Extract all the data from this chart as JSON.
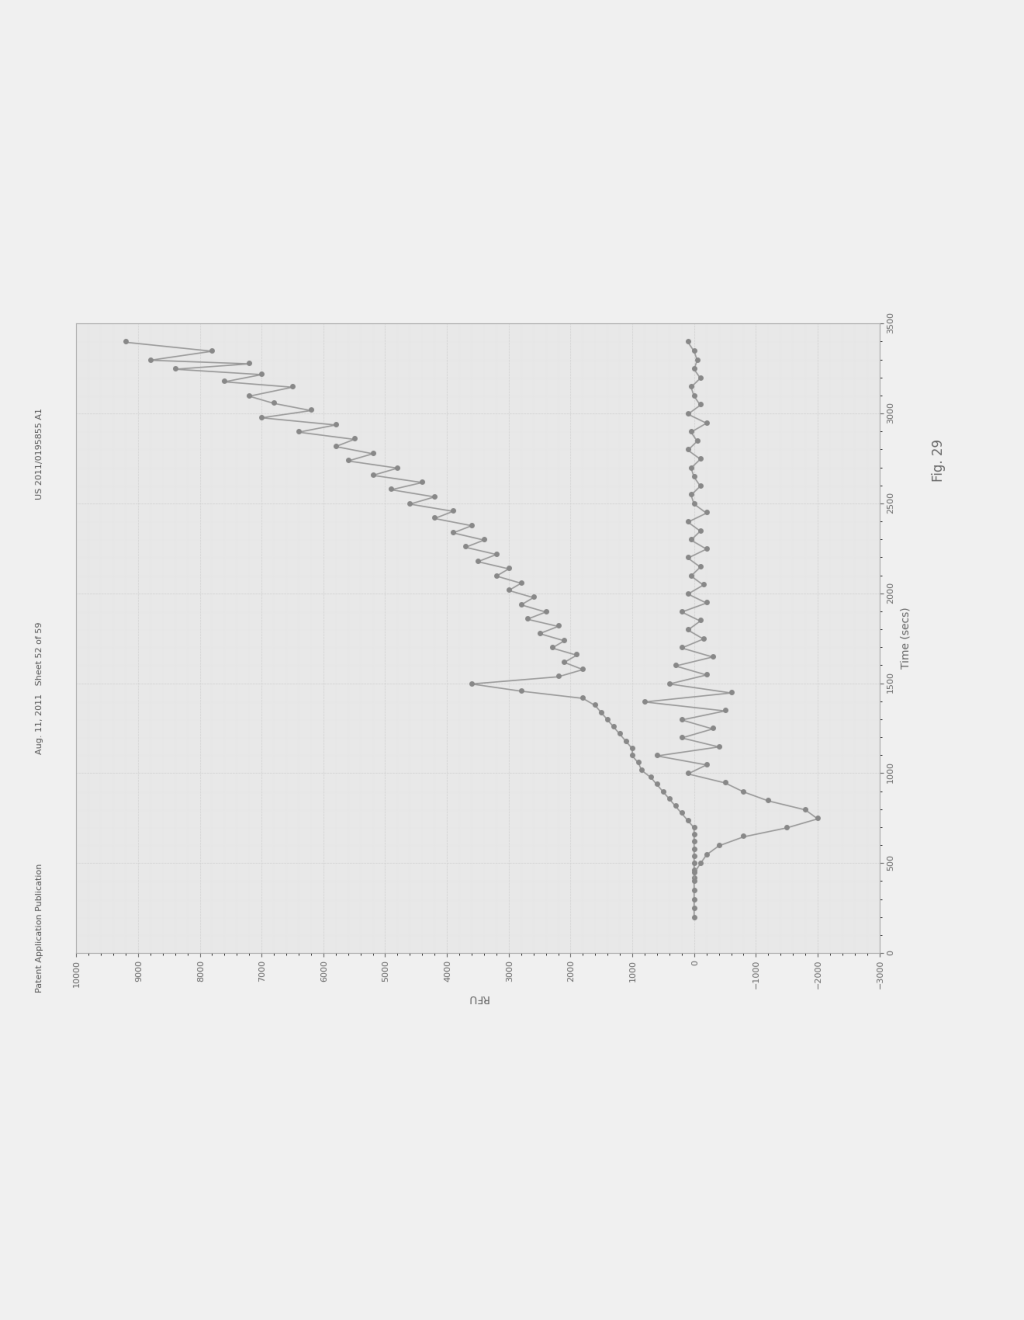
{
  "title": "",
  "xlabel": "Time (secs)",
  "ylabel": "RFU",
  "xlim": [
    0,
    3500
  ],
  "ylim": [
    -3000,
    10000
  ],
  "xticks": [
    0,
    500,
    1000,
    1500,
    2000,
    2500,
    3000,
    3500
  ],
  "yticks": [
    -3000,
    -2000,
    -1000,
    0,
    1000,
    2000,
    3000,
    4000,
    5000,
    6000,
    7000,
    8000,
    9000,
    10000
  ],
  "background_color": "#e8e8e8",
  "line_color": "#999999",
  "marker_color": "#888888",
  "grid_color": "#ffffff",
  "fig_caption": "Fig. 29",
  "series1_x": [
    3400,
    3350,
    3300,
    3280,
    3250,
    3220,
    3180,
    3150,
    3100,
    3060,
    3020,
    2980,
    2940,
    2900,
    2860,
    2820,
    2780,
    2740,
    2700,
    2660,
    2620,
    2580,
    2540,
    2500,
    2460,
    2420,
    2380,
    2340,
    2300,
    2260,
    2220,
    2180,
    2140,
    2100,
    2060,
    2020,
    1980,
    1940,
    1900,
    1860,
    1820,
    1780,
    1740,
    1700,
    1660,
    1620,
    1580,
    1540,
    1500,
    1460,
    1420,
    1380,
    1340,
    1300,
    1260,
    1220,
    1180,
    1140,
    1100,
    1060,
    1020,
    980,
    940,
    900,
    860,
    820,
    780,
    740,
    700,
    660,
    620,
    580,
    540,
    500,
    460,
    420
  ],
  "series1_y": [
    9200,
    7800,
    8800,
    7200,
    8400,
    7000,
    7600,
    6500,
    7200,
    6800,
    6200,
    7000,
    5800,
    6400,
    5500,
    5800,
    5200,
    5600,
    4800,
    5200,
    4400,
    4900,
    4200,
    4600,
    3900,
    4200,
    3600,
    3900,
    3400,
    3700,
    3200,
    3500,
    3000,
    3200,
    2800,
    3000,
    2600,
    2800,
    2400,
    2700,
    2200,
    2500,
    2100,
    2300,
    1900,
    2100,
    1800,
    2200,
    3600,
    2800,
    1800,
    1600,
    1500,
    1400,
    1300,
    1200,
    1100,
    1000,
    1000,
    900,
    850,
    700,
    600,
    500,
    400,
    300,
    200,
    100,
    0,
    0,
    0,
    0,
    0,
    0,
    0,
    0
  ],
  "series2_x": [
    3400,
    3350,
    3300,
    3250,
    3200,
    3150,
    3100,
    3050,
    3000,
    2950,
    2900,
    2850,
    2800,
    2750,
    2700,
    2650,
    2600,
    2550,
    2500,
    2450,
    2400,
    2350,
    2300,
    2250,
    2200,
    2150,
    2100,
    2050,
    2000,
    1950,
    1900,
    1850,
    1800,
    1750,
    1700,
    1650,
    1600,
    1550,
    1500,
    1450,
    1400,
    1350,
    1300,
    1250,
    1200,
    1150,
    1100,
    1050,
    1000,
    950,
    900,
    850,
    800,
    750,
    700,
    650,
    600,
    550,
    500,
    450,
    400,
    350,
    300,
    250,
    200
  ],
  "series2_y": [
    100,
    0,
    -50,
    0,
    -100,
    50,
    0,
    -100,
    100,
    -200,
    50,
    -50,
    100,
    -100,
    50,
    0,
    -100,
    50,
    0,
    -200,
    100,
    -100,
    50,
    -200,
    100,
    -100,
    50,
    -150,
    100,
    -200,
    200,
    -100,
    100,
    -150,
    200,
    -300,
    300,
    -200,
    400,
    -600,
    800,
    -500,
    200,
    -300,
    200,
    -400,
    600,
    -200,
    100,
    -500,
    -800,
    -1200,
    -1800,
    -2000,
    -1500,
    -800,
    -400,
    -200,
    -100,
    0,
    0,
    0,
    0,
    0,
    0
  ]
}
